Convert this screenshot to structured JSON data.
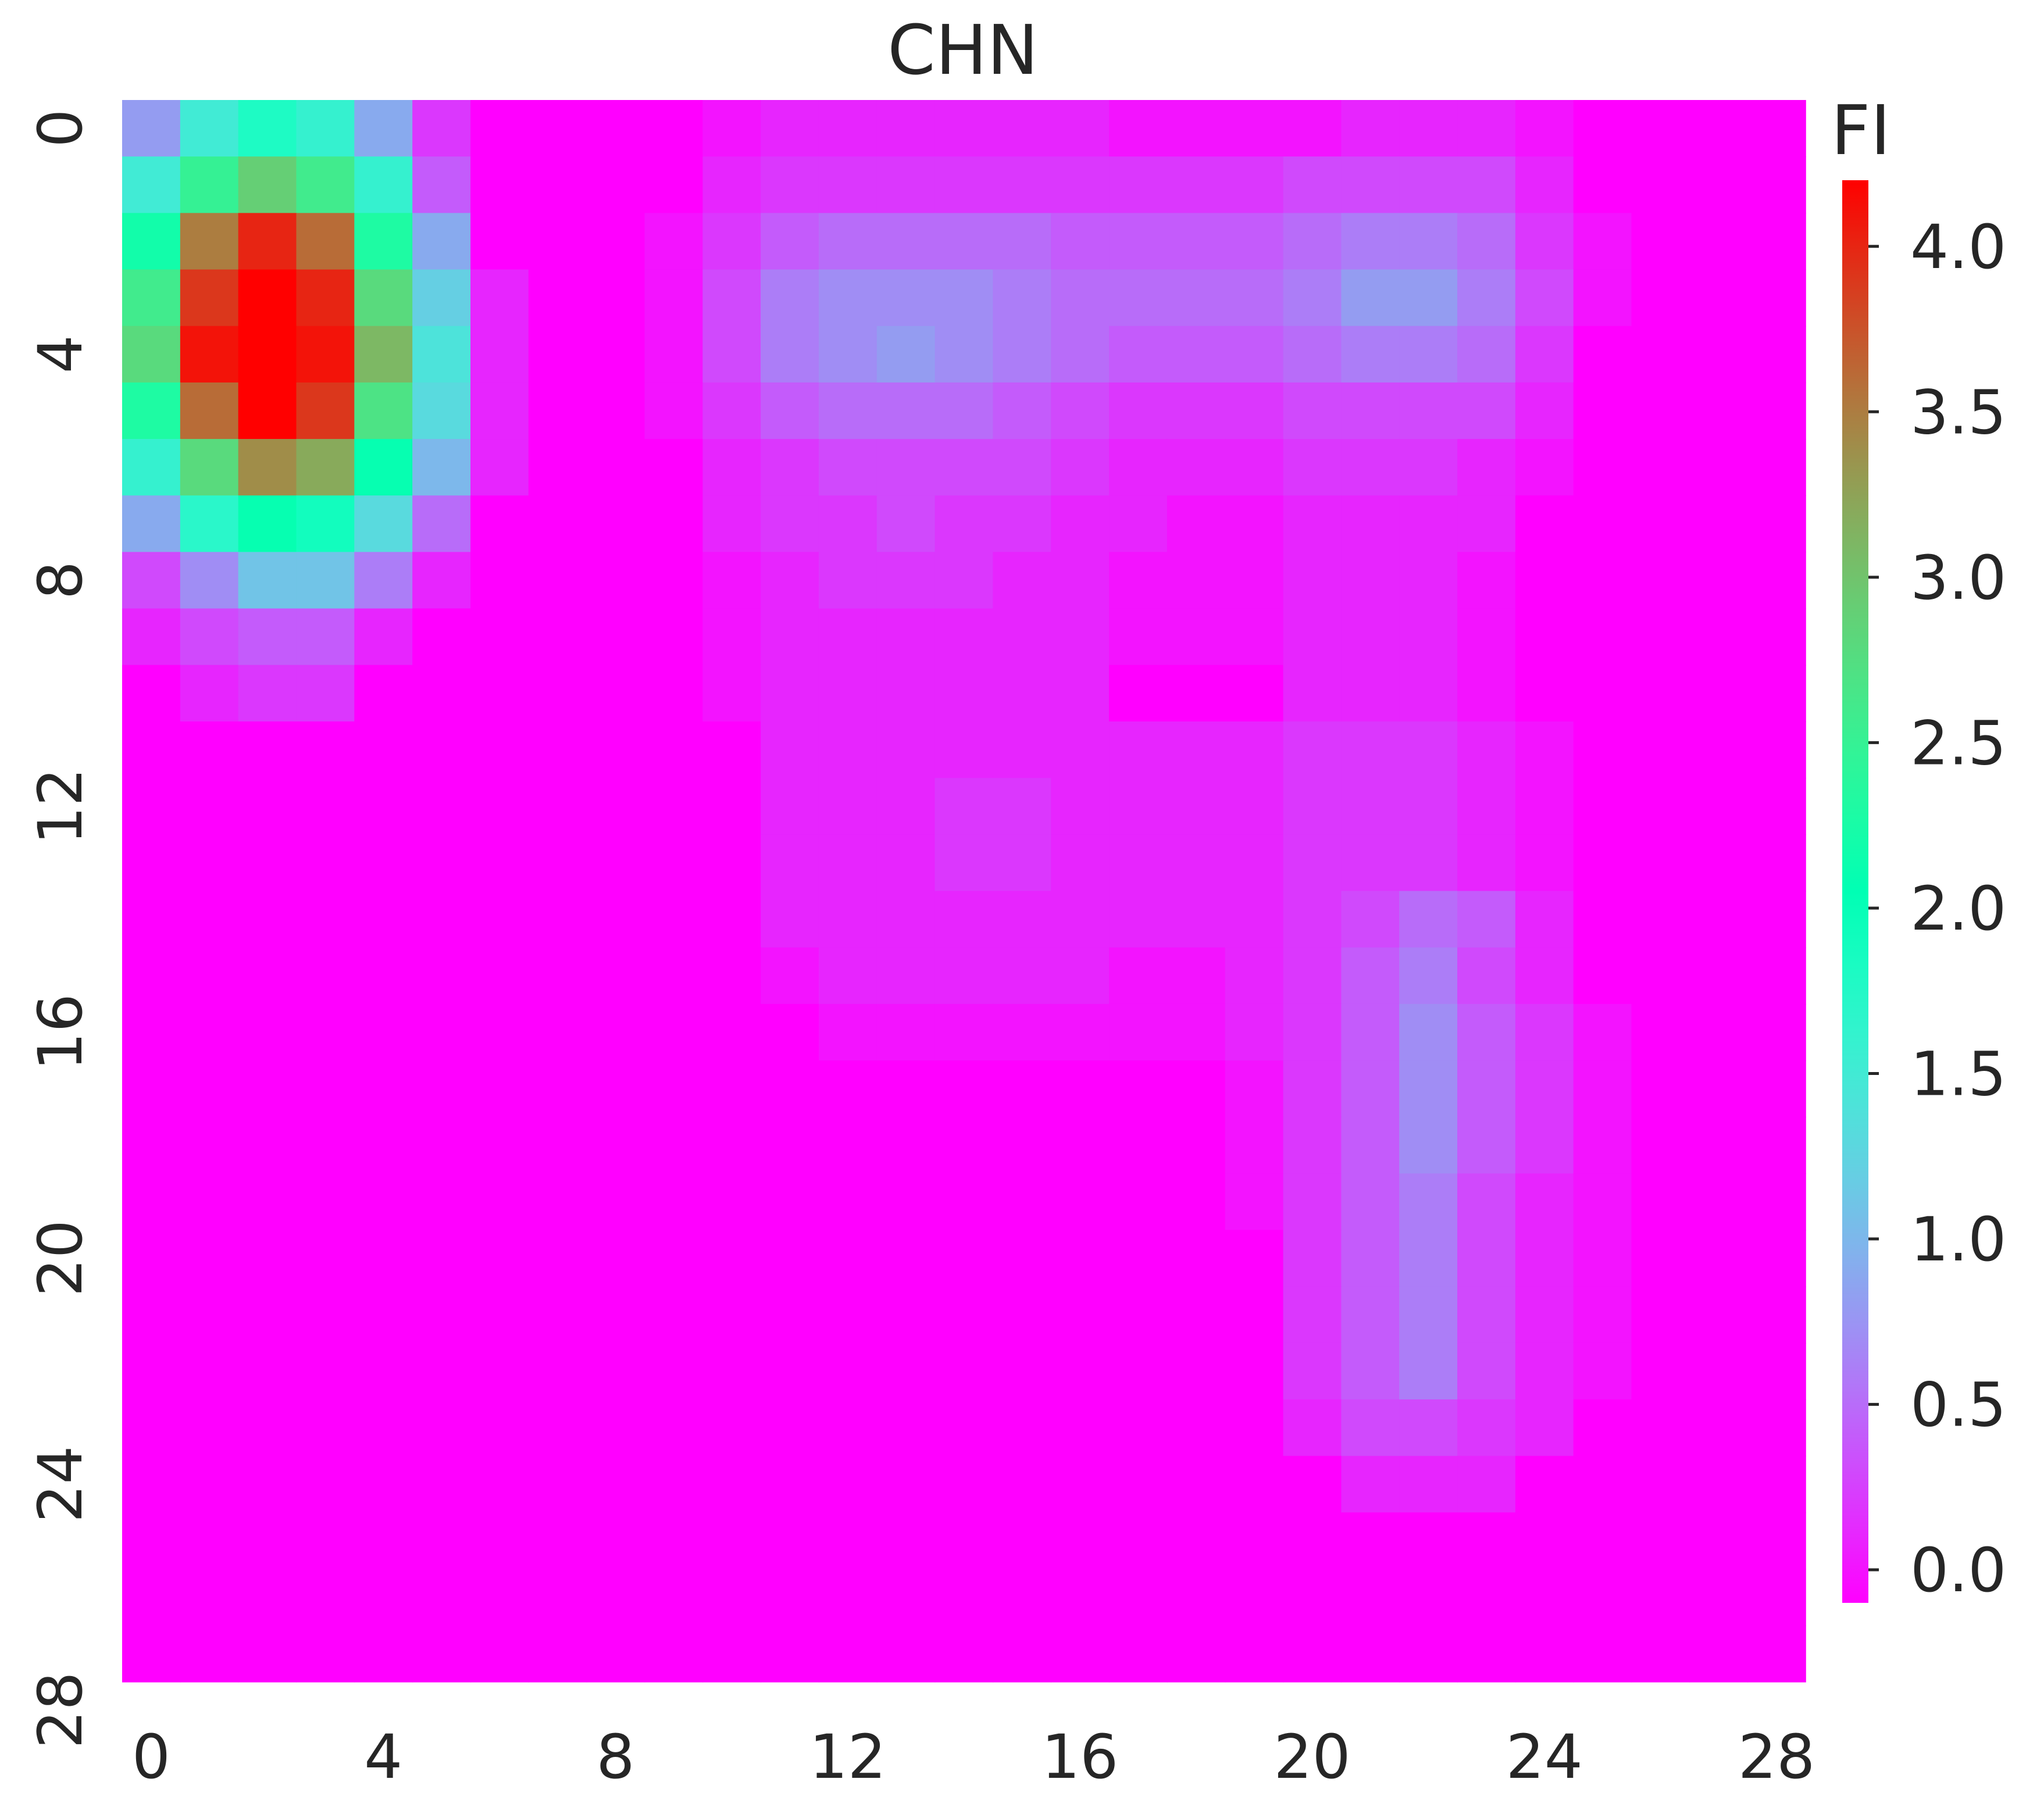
{
  "chart_data": {
    "type": "heatmap",
    "title": "CHN",
    "xlabel": "",
    "ylabel": "",
    "x_ticks": [
      "0",
      "4",
      "8",
      "12",
      "16",
      "20",
      "24",
      "28"
    ],
    "y_ticks": [
      "0",
      "4",
      "8",
      "12",
      "16",
      "20",
      "24",
      "28"
    ],
    "grid": false,
    "n_rows": 28,
    "n_cols": 29,
    "colormap": "rainbow",
    "colorbar": {
      "label": "FI",
      "vmin": -0.1,
      "vmax": 4.2,
      "ticks": [
        "0.0",
        "0.5",
        "1.0",
        "1.5",
        "2.0",
        "2.5",
        "3.0",
        "3.5",
        "4.0"
      ],
      "tick_values": [
        0.0,
        0.5,
        1.0,
        1.5,
        2.0,
        2.5,
        3.0,
        3.5,
        4.0
      ]
    },
    "background_value": -0.1,
    "values": [
      [
        0.8,
        1.5,
        1.8,
        1.6,
        0.9,
        0.2,
        -0.1,
        -0.1,
        -0.1,
        -0.1,
        0.0,
        0.1,
        0.1,
        0.1,
        0.1,
        0.1,
        0.1,
        0.0,
        0.0,
        0.0,
        0.0,
        0.1,
        0.1,
        0.1,
        0.0,
        -0.1,
        -0.1,
        -0.1,
        -0.1
      ],
      [
        1.5,
        2.5,
        2.9,
        2.6,
        1.6,
        0.4,
        -0.1,
        -0.1,
        -0.1,
        -0.1,
        0.1,
        0.2,
        0.2,
        0.2,
        0.2,
        0.2,
        0.2,
        0.2,
        0.2,
        0.2,
        0.3,
        0.3,
        0.3,
        0.3,
        0.1,
        -0.1,
        -0.1,
        -0.1,
        -0.1
      ],
      [
        2.2,
        3.5,
        4.0,
        3.6,
        2.3,
        0.9,
        -0.1,
        -0.1,
        -0.1,
        0.0,
        0.2,
        0.4,
        0.5,
        0.5,
        0.5,
        0.5,
        0.4,
        0.4,
        0.4,
        0.4,
        0.5,
        0.6,
        0.6,
        0.5,
        0.2,
        0.0,
        -0.1,
        -0.1,
        -0.1
      ],
      [
        2.6,
        3.9,
        4.2,
        4.0,
        2.8,
        1.2,
        0.1,
        -0.1,
        -0.1,
        0.0,
        0.3,
        0.6,
        0.7,
        0.7,
        0.7,
        0.6,
        0.5,
        0.5,
        0.5,
        0.5,
        0.6,
        0.8,
        0.8,
        0.6,
        0.3,
        0.0,
        -0.1,
        -0.1,
        -0.1
      ],
      [
        2.8,
        4.1,
        4.2,
        4.1,
        3.1,
        1.4,
        0.1,
        -0.1,
        -0.1,
        0.0,
        0.3,
        0.6,
        0.7,
        0.8,
        0.7,
        0.6,
        0.5,
        0.4,
        0.4,
        0.4,
        0.5,
        0.6,
        0.6,
        0.5,
        0.2,
        -0.1,
        -0.1,
        -0.1,
        -0.1
      ],
      [
        2.3,
        3.6,
        4.2,
        3.9,
        2.7,
        1.3,
        0.1,
        -0.1,
        -0.1,
        0.0,
        0.2,
        0.4,
        0.5,
        0.5,
        0.5,
        0.4,
        0.3,
        0.2,
        0.2,
        0.2,
        0.3,
        0.3,
        0.3,
        0.3,
        0.1,
        -0.1,
        -0.1,
        -0.1,
        -0.1
      ],
      [
        1.6,
        2.8,
        3.4,
        3.2,
        2.1,
        1.0,
        0.1,
        -0.1,
        -0.1,
        -0.1,
        0.1,
        0.2,
        0.3,
        0.3,
        0.3,
        0.3,
        0.2,
        0.1,
        0.1,
        0.1,
        0.2,
        0.2,
        0.2,
        0.1,
        0.0,
        -0.1,
        -0.1,
        -0.1,
        -0.1
      ],
      [
        0.9,
        1.7,
        2.1,
        1.9,
        1.3,
        0.5,
        -0.1,
        -0.1,
        -0.1,
        -0.1,
        0.1,
        0.2,
        0.2,
        0.3,
        0.2,
        0.2,
        0.1,
        0.1,
        0.0,
        0.0,
        0.1,
        0.1,
        0.1,
        0.1,
        -0.1,
        -0.1,
        -0.1,
        -0.1,
        -0.1
      ],
      [
        0.3,
        0.7,
        1.1,
        1.1,
        0.6,
        0.1,
        -0.1,
        -0.1,
        -0.1,
        -0.1,
        0.0,
        0.1,
        0.2,
        0.2,
        0.2,
        0.1,
        0.1,
        0.0,
        0.0,
        0.0,
        0.1,
        0.1,
        0.1,
        0.0,
        -0.1,
        -0.1,
        -0.1,
        -0.1,
        -0.1
      ],
      [
        0.1,
        0.3,
        0.4,
        0.4,
        0.1,
        -0.1,
        -0.1,
        -0.1,
        -0.1,
        -0.1,
        0.0,
        0.1,
        0.1,
        0.1,
        0.1,
        0.1,
        0.1,
        0.0,
        0.0,
        0.0,
        0.1,
        0.1,
        0.1,
        0.0,
        -0.1,
        -0.1,
        -0.1,
        -0.1,
        -0.1
      ],
      [
        -0.1,
        0.1,
        0.2,
        0.2,
        -0.1,
        -0.1,
        -0.1,
        -0.1,
        -0.1,
        -0.1,
        0.0,
        0.1,
        0.1,
        0.1,
        0.1,
        0.1,
        0.1,
        -0.1,
        -0.1,
        -0.1,
        0.1,
        0.1,
        0.1,
        0.0,
        -0.1,
        -0.1,
        -0.1,
        -0.1,
        -0.1
      ],
      [
        -0.1,
        -0.1,
        -0.1,
        -0.1,
        -0.1,
        -0.1,
        -0.1,
        -0.1,
        -0.1,
        -0.1,
        -0.1,
        0.1,
        0.1,
        0.1,
        0.1,
        0.1,
        0.1,
        0.1,
        0.1,
        0.1,
        0.2,
        0.2,
        0.2,
        0.1,
        0.0,
        -0.1,
        -0.1,
        -0.1,
        -0.1
      ],
      [
        -0.1,
        -0.1,
        -0.1,
        -0.1,
        -0.1,
        -0.1,
        -0.1,
        -0.1,
        -0.1,
        -0.1,
        -0.1,
        0.1,
        0.1,
        0.1,
        0.2,
        0.2,
        0.1,
        0.1,
        0.1,
        0.1,
        0.2,
        0.2,
        0.2,
        0.1,
        0.0,
        -0.1,
        -0.1,
        -0.1,
        -0.1
      ],
      [
        -0.1,
        -0.1,
        -0.1,
        -0.1,
        -0.1,
        -0.1,
        -0.1,
        -0.1,
        -0.1,
        -0.1,
        -0.1,
        0.1,
        0.1,
        0.1,
        0.2,
        0.2,
        0.1,
        0.1,
        0.1,
        0.1,
        0.2,
        0.2,
        0.2,
        0.1,
        0.0,
        -0.1,
        -0.1,
        -0.1,
        -0.1
      ],
      [
        -0.1,
        -0.1,
        -0.1,
        -0.1,
        -0.1,
        -0.1,
        -0.1,
        -0.1,
        -0.1,
        -0.1,
        -0.1,
        0.1,
        0.1,
        0.1,
        0.1,
        0.1,
        0.1,
        0.1,
        0.1,
        0.1,
        0.2,
        0.3,
        0.5,
        0.4,
        0.1,
        -0.1,
        -0.1,
        -0.1,
        -0.1
      ],
      [
        -0.1,
        -0.1,
        -0.1,
        -0.1,
        -0.1,
        -0.1,
        -0.1,
        -0.1,
        -0.1,
        -0.1,
        -0.1,
        0.0,
        0.1,
        0.1,
        0.1,
        0.1,
        0.1,
        0.0,
        0.0,
        0.1,
        0.2,
        0.4,
        0.6,
        0.3,
        0.1,
        -0.1,
        -0.1,
        -0.1,
        -0.1
      ],
      [
        -0.1,
        -0.1,
        -0.1,
        -0.1,
        -0.1,
        -0.1,
        -0.1,
        -0.1,
        -0.1,
        -0.1,
        -0.1,
        -0.1,
        0.0,
        0.0,
        0.0,
        0.0,
        0.0,
        0.0,
        0.0,
        0.1,
        0.2,
        0.4,
        0.7,
        0.4,
        0.2,
        0.0,
        -0.1,
        -0.1,
        -0.1
      ],
      [
        -0.1,
        -0.1,
        -0.1,
        -0.1,
        -0.1,
        -0.1,
        -0.1,
        -0.1,
        -0.1,
        -0.1,
        -0.1,
        -0.1,
        -0.1,
        -0.1,
        -0.1,
        -0.1,
        -0.1,
        -0.1,
        -0.1,
        0.0,
        0.2,
        0.4,
        0.7,
        0.4,
        0.2,
        0.0,
        -0.1,
        -0.1,
        -0.1
      ],
      [
        -0.1,
        -0.1,
        -0.1,
        -0.1,
        -0.1,
        -0.1,
        -0.1,
        -0.1,
        -0.1,
        -0.1,
        -0.1,
        -0.1,
        -0.1,
        -0.1,
        -0.1,
        -0.1,
        -0.1,
        -0.1,
        -0.1,
        0.0,
        0.2,
        0.4,
        0.7,
        0.4,
        0.2,
        0.0,
        -0.1,
        -0.1,
        -0.1
      ],
      [
        -0.1,
        -0.1,
        -0.1,
        -0.1,
        -0.1,
        -0.1,
        -0.1,
        -0.1,
        -0.1,
        -0.1,
        -0.1,
        -0.1,
        -0.1,
        -0.1,
        -0.1,
        -0.1,
        -0.1,
        -0.1,
        -0.1,
        0.0,
        0.2,
        0.4,
        0.6,
        0.3,
        0.1,
        0.0,
        -0.1,
        -0.1,
        -0.1
      ],
      [
        -0.1,
        -0.1,
        -0.1,
        -0.1,
        -0.1,
        -0.1,
        -0.1,
        -0.1,
        -0.1,
        -0.1,
        -0.1,
        -0.1,
        -0.1,
        -0.1,
        -0.1,
        -0.1,
        -0.1,
        -0.1,
        -0.1,
        -0.1,
        0.2,
        0.4,
        0.6,
        0.3,
        0.1,
        0.0,
        -0.1,
        -0.1,
        -0.1
      ],
      [
        -0.1,
        -0.1,
        -0.1,
        -0.1,
        -0.1,
        -0.1,
        -0.1,
        -0.1,
        -0.1,
        -0.1,
        -0.1,
        -0.1,
        -0.1,
        -0.1,
        -0.1,
        -0.1,
        -0.1,
        -0.1,
        -0.1,
        -0.1,
        0.2,
        0.4,
        0.6,
        0.3,
        0.1,
        0.0,
        -0.1,
        -0.1,
        -0.1
      ],
      [
        -0.1,
        -0.1,
        -0.1,
        -0.1,
        -0.1,
        -0.1,
        -0.1,
        -0.1,
        -0.1,
        -0.1,
        -0.1,
        -0.1,
        -0.1,
        -0.1,
        -0.1,
        -0.1,
        -0.1,
        -0.1,
        -0.1,
        -0.1,
        0.2,
        0.4,
        0.6,
        0.3,
        0.1,
        0.0,
        -0.1,
        -0.1,
        -0.1
      ],
      [
        -0.1,
        -0.1,
        -0.1,
        -0.1,
        -0.1,
        -0.1,
        -0.1,
        -0.1,
        -0.1,
        -0.1,
        -0.1,
        -0.1,
        -0.1,
        -0.1,
        -0.1,
        -0.1,
        -0.1,
        -0.1,
        -0.1,
        -0.1,
        0.1,
        0.3,
        0.3,
        0.2,
        0.1,
        -0.1,
        -0.1,
        -0.1,
        -0.1
      ],
      [
        -0.1,
        -0.1,
        -0.1,
        -0.1,
        -0.1,
        -0.1,
        -0.1,
        -0.1,
        -0.1,
        -0.1,
        -0.1,
        -0.1,
        -0.1,
        -0.1,
        -0.1,
        -0.1,
        -0.1,
        -0.1,
        -0.1,
        -0.1,
        -0.1,
        0.1,
        0.1,
        0.1,
        -0.1,
        -0.1,
        -0.1,
        -0.1,
        -0.1
      ],
      [
        -0.1,
        -0.1,
        -0.1,
        -0.1,
        -0.1,
        -0.1,
        -0.1,
        -0.1,
        -0.1,
        -0.1,
        -0.1,
        -0.1,
        -0.1,
        -0.1,
        -0.1,
        -0.1,
        -0.1,
        -0.1,
        -0.1,
        -0.1,
        -0.1,
        -0.1,
        -0.1,
        -0.1,
        -0.1,
        -0.1,
        -0.1,
        -0.1,
        -0.1
      ],
      [
        -0.1,
        -0.1,
        -0.1,
        -0.1,
        -0.1,
        -0.1,
        -0.1,
        -0.1,
        -0.1,
        -0.1,
        -0.1,
        -0.1,
        -0.1,
        -0.1,
        -0.1,
        -0.1,
        -0.1,
        -0.1,
        -0.1,
        -0.1,
        -0.1,
        -0.1,
        -0.1,
        -0.1,
        -0.1,
        -0.1,
        -0.1,
        -0.1,
        -0.1
      ],
      [
        -0.1,
        -0.1,
        -0.1,
        -0.1,
        -0.1,
        -0.1,
        -0.1,
        -0.1,
        -0.1,
        -0.1,
        -0.1,
        -0.1,
        -0.1,
        -0.1,
        -0.1,
        -0.1,
        -0.1,
        -0.1,
        -0.1,
        -0.1,
        -0.1,
        -0.1,
        -0.1,
        -0.1,
        -0.1,
        -0.1,
        -0.1,
        -0.1,
        -0.1
      ]
    ]
  }
}
